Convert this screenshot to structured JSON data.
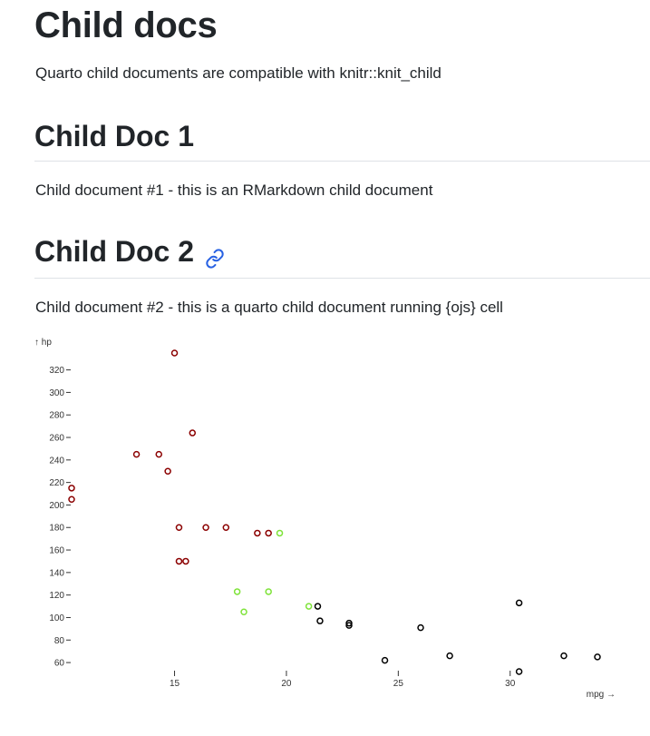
{
  "page": {
    "title": "Child docs",
    "intro": "Quarto child documents are compatible with knitr::knit_child"
  },
  "sections": [
    {
      "heading": "Child Doc 1",
      "text": "Child document #1 - this is an RMarkdown child document"
    },
    {
      "heading": "Child Doc 2",
      "text": "Child document #2 - this is a quarto child document running {ojs} cell"
    }
  ],
  "icons": {
    "anchor": "link-icon"
  },
  "colors": {
    "link": "#2761e3",
    "auto": "#000000",
    "am0_high": "#8b0000",
    "am0_low": "#7fe33a"
  },
  "chart_data": {
    "type": "scatter",
    "xlabel": "mpg →",
    "ylabel": "↑ hp",
    "xlim": [
      10.4,
      33.9
    ],
    "ylim": [
      52,
      335
    ],
    "xticks": [
      15,
      20,
      25,
      30
    ],
    "yticks": [
      60,
      80,
      100,
      120,
      140,
      160,
      180,
      200,
      220,
      240,
      260,
      280,
      300,
      320
    ],
    "series": [
      {
        "color": "#8b0000",
        "points": [
          [
            15.0,
            335
          ],
          [
            15.8,
            264
          ],
          [
            13.3,
            245
          ],
          [
            14.3,
            245
          ],
          [
            14.7,
            230
          ],
          [
            10.4,
            215
          ],
          [
            10.4,
            205
          ],
          [
            15.2,
            180
          ],
          [
            16.4,
            180
          ],
          [
            17.3,
            180
          ],
          [
            18.7,
            175
          ],
          [
            19.2,
            175
          ],
          [
            15.2,
            150
          ],
          [
            15.5,
            150
          ]
        ]
      },
      {
        "color": "#7fe33a",
        "points": [
          [
            19.7,
            175
          ],
          [
            17.8,
            123
          ],
          [
            19.2,
            123
          ],
          [
            18.1,
            105
          ],
          [
            21.0,
            110
          ]
        ]
      },
      {
        "color": "#000000",
        "points": [
          [
            21.4,
            110
          ],
          [
            21.5,
            97
          ],
          [
            22.8,
            95
          ],
          [
            22.8,
            93
          ],
          [
            26.0,
            91
          ],
          [
            30.4,
            113
          ],
          [
            24.4,
            62
          ],
          [
            27.3,
            66
          ],
          [
            32.4,
            66
          ],
          [
            33.9,
            65
          ],
          [
            30.4,
            52
          ]
        ]
      }
    ]
  }
}
